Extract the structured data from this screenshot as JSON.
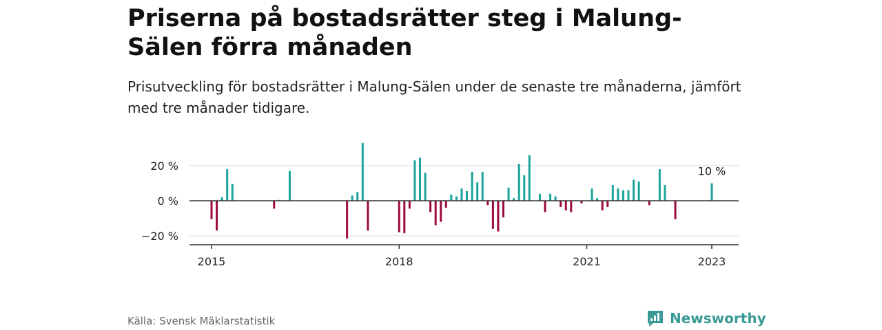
{
  "header": {
    "title": "Priserna på bostadsrätter steg i Malung-Sälen förra månaden",
    "subtitle": "Prisutveckling för bostadsrätter i Malung-Sälen under de senaste tre månaderna, jämfört med tre månader tidigare."
  },
  "footer": {
    "source": "Källa: Svensk Mäklarstatistik",
    "brand": "Newsworthy",
    "brand_icon": "newsworthy-logo-icon"
  },
  "colors": {
    "positive": "#1aa39a",
    "negative": "#9b0a3c",
    "grid": "#d9d9d9",
    "axis": "#333333"
  },
  "chart_data": {
    "type": "bar",
    "title": "",
    "xlabel": "",
    "ylabel": "",
    "ylim": [
      -25,
      35
    ],
    "yticks": [
      20,
      0,
      -20
    ],
    "ytick_labels": [
      "20 %",
      "0 %",
      "−20 %"
    ],
    "xticks": [
      2015,
      2018,
      2021,
      2023
    ],
    "xtick_labels": [
      "2015",
      "2018",
      "2021",
      "2023"
    ],
    "grid": true,
    "annotation": "10 %",
    "annotation_date": "2023-01",
    "series": [
      {
        "values": [
          {
            "date": "2015-01",
            "value": -10.5
          },
          {
            "date": "2015-02",
            "value": -17
          },
          {
            "date": "2015-03",
            "value": 2
          },
          {
            "date": "2015-04",
            "value": 18
          },
          {
            "date": "2015-05",
            "value": 9.5
          },
          {
            "date": "2016-01",
            "value": -4.5
          },
          {
            "date": "2016-02",
            "value": 0.5
          },
          {
            "date": "2016-04",
            "value": 17
          },
          {
            "date": "2017-03",
            "value": -21.5
          },
          {
            "date": "2017-04",
            "value": 3
          },
          {
            "date": "2017-05",
            "value": 5
          },
          {
            "date": "2017-06",
            "value": 33
          },
          {
            "date": "2017-07",
            "value": -17
          },
          {
            "date": "2018-01",
            "value": -18
          },
          {
            "date": "2018-02",
            "value": -18.5
          },
          {
            "date": "2018-03",
            "value": -4.5
          },
          {
            "date": "2018-04",
            "value": 23
          },
          {
            "date": "2018-05",
            "value": 24.5
          },
          {
            "date": "2018-06",
            "value": 16
          },
          {
            "date": "2018-07",
            "value": -6.5
          },
          {
            "date": "2018-08",
            "value": -14
          },
          {
            "date": "2018-09",
            "value": -12
          },
          {
            "date": "2018-10",
            "value": -4
          },
          {
            "date": "2018-11",
            "value": 3.5
          },
          {
            "date": "2018-12",
            "value": 2.5
          },
          {
            "date": "2019-01",
            "value": 7
          },
          {
            "date": "2019-02",
            "value": 5.5
          },
          {
            "date": "2019-03",
            "value": 16.5
          },
          {
            "date": "2019-04",
            "value": 10.5
          },
          {
            "date": "2019-05",
            "value": 16.5
          },
          {
            "date": "2019-06",
            "value": -2.5
          },
          {
            "date": "2019-07",
            "value": -16
          },
          {
            "date": "2019-08",
            "value": -17.5
          },
          {
            "date": "2019-09",
            "value": -9.5
          },
          {
            "date": "2019-10",
            "value": 7.5
          },
          {
            "date": "2019-11",
            "value": 1.5
          },
          {
            "date": "2019-12",
            "value": 21
          },
          {
            "date": "2020-01",
            "value": 14.5
          },
          {
            "date": "2020-02",
            "value": 26
          },
          {
            "date": "2020-04",
            "value": 4
          },
          {
            "date": "2020-05",
            "value": -6.5
          },
          {
            "date": "2020-06",
            "value": 4
          },
          {
            "date": "2020-07",
            "value": 2.5
          },
          {
            "date": "2020-08",
            "value": -3.5
          },
          {
            "date": "2020-09",
            "value": -5.5
          },
          {
            "date": "2020-10",
            "value": -6.5
          },
          {
            "date": "2020-12",
            "value": -1.5
          },
          {
            "date": "2021-02",
            "value": 7
          },
          {
            "date": "2021-03",
            "value": 1.5
          },
          {
            "date": "2021-04",
            "value": -5.5
          },
          {
            "date": "2021-05",
            "value": -3.5
          },
          {
            "date": "2021-06",
            "value": 9
          },
          {
            "date": "2021-07",
            "value": 7
          },
          {
            "date": "2021-08",
            "value": 6
          },
          {
            "date": "2021-09",
            "value": 6
          },
          {
            "date": "2021-10",
            "value": 12
          },
          {
            "date": "2021-11",
            "value": 11
          },
          {
            "date": "2022-01",
            "value": -2.5
          },
          {
            "date": "2022-03",
            "value": 18
          },
          {
            "date": "2022-04",
            "value": 9
          },
          {
            "date": "2022-06",
            "value": -10.5
          },
          {
            "date": "2023-01",
            "value": 10
          }
        ]
      }
    ]
  }
}
